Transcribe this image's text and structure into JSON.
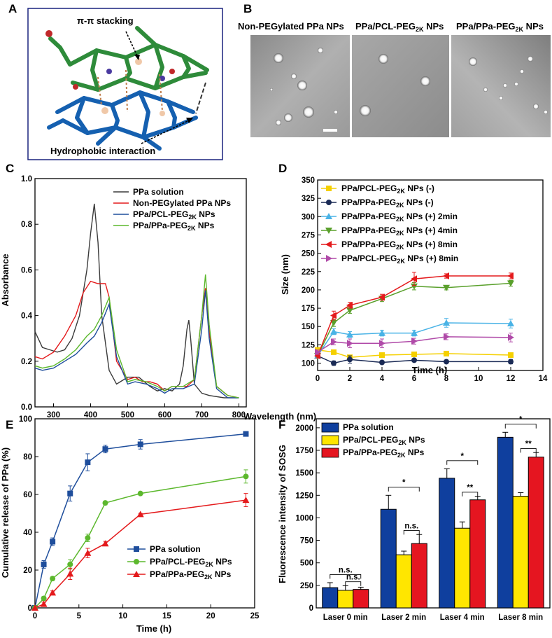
{
  "panels": [
    "A",
    "B",
    "C",
    "D",
    "E",
    "F"
  ],
  "panel_a": {
    "label_pi": "π-π stacking",
    "label_hydro": "Hydrophobic interaction"
  },
  "panel_b": {
    "titles": [
      "Non-PEGylated PPa NPs",
      "PPa/PCL-PEG",
      "PPa/PPa-PEG"
    ],
    "sub": "2K",
    "suffix": " NPs"
  },
  "colors": {
    "dark": "#3a3a3a",
    "red": "#e41a1c",
    "blue": "#1f4e9c",
    "green": "#5cb82d",
    "yellow": "#f5d000",
    "navy": "#1a2a55",
    "cyan": "#4ab3e6",
    "olive": "#5aa02c",
    "magenta": "#b04aa8",
    "navyBar": "#0f3f9e",
    "yellowBar": "#ffe600",
    "redBar": "#e51520"
  },
  "chart_data": [
    {
      "id": "C",
      "type": "line",
      "xlabel": "Wavelength (nm)",
      "ylabel": "Absorbance",
      "xlim": [
        250,
        820
      ],
      "ylim": [
        0,
        1.0
      ],
      "xticks": [
        300,
        400,
        500,
        600,
        700,
        800
      ],
      "yticks": [
        0.0,
        0.2,
        0.4,
        0.6,
        0.8,
        1.0
      ],
      "legend": [
        {
          "pre": "PPa solution",
          "sub": "",
          "post": ""
        },
        {
          "pre": "Non-PEGylated PPa NPs",
          "sub": "",
          "post": ""
        },
        {
          "pre": "PPa/PCL-PEG",
          "sub": "2K",
          "post": " NPs"
        },
        {
          "pre": "PPa/PPa-PEG",
          "sub": "2K",
          "post": " NPs"
        }
      ],
      "series": [
        {
          "name": "PPa solution",
          "color": "dark",
          "x": [
            250,
            270,
            290,
            310,
            330,
            350,
            370,
            390,
            400,
            410,
            420,
            430,
            450,
            470,
            500,
            530,
            560,
            580,
            600,
            620,
            640,
            650,
            660,
            665,
            670,
            680,
            700,
            720,
            760,
            800
          ],
          "y": [
            0.33,
            0.26,
            0.25,
            0.24,
            0.25,
            0.3,
            0.4,
            0.6,
            0.76,
            0.89,
            0.72,
            0.4,
            0.16,
            0.1,
            0.13,
            0.13,
            0.09,
            0.07,
            0.08,
            0.07,
            0.1,
            0.18,
            0.34,
            0.38,
            0.3,
            0.1,
            0.06,
            0.05,
            0.04,
            0.04
          ]
        },
        {
          "name": "Non-PEGylated PPa NPs",
          "color": "red",
          "x": [
            250,
            270,
            300,
            330,
            360,
            380,
            400,
            420,
            440,
            450,
            470,
            500,
            520,
            540,
            560,
            580,
            600,
            620,
            640,
            660,
            680,
            700,
            710,
            720,
            740,
            770,
            800
          ],
          "y": [
            0.22,
            0.21,
            0.24,
            0.31,
            0.4,
            0.5,
            0.55,
            0.54,
            0.54,
            0.48,
            0.2,
            0.12,
            0.13,
            0.11,
            0.11,
            0.1,
            0.07,
            0.09,
            0.09,
            0.09,
            0.12,
            0.4,
            0.52,
            0.33,
            0.09,
            0.05,
            0.04
          ]
        },
        {
          "name": "PPa/PCL-PEG2K NPs",
          "color": "blue",
          "x": [
            250,
            270,
            300,
            330,
            360,
            390,
            410,
            430,
            450,
            470,
            500,
            520,
            550,
            580,
            600,
            620,
            650,
            680,
            700,
            710,
            720,
            740,
            770,
            800
          ],
          "y": [
            0.17,
            0.16,
            0.17,
            0.2,
            0.23,
            0.28,
            0.31,
            0.37,
            0.45,
            0.22,
            0.1,
            0.11,
            0.1,
            0.08,
            0.06,
            0.08,
            0.08,
            0.1,
            0.34,
            0.51,
            0.3,
            0.08,
            0.04,
            0.04
          ]
        },
        {
          "name": "PPa/PPa-PEG2K NPs",
          "color": "green",
          "x": [
            250,
            270,
            300,
            330,
            360,
            390,
            410,
            430,
            440,
            450,
            470,
            500,
            520,
            550,
            580,
            600,
            620,
            650,
            680,
            700,
            710,
            720,
            740,
            770,
            800
          ],
          "y": [
            0.18,
            0.17,
            0.18,
            0.21,
            0.25,
            0.31,
            0.34,
            0.4,
            0.44,
            0.48,
            0.25,
            0.11,
            0.12,
            0.11,
            0.09,
            0.07,
            0.09,
            0.09,
            0.12,
            0.4,
            0.58,
            0.36,
            0.09,
            0.05,
            0.04
          ]
        }
      ]
    },
    {
      "id": "D",
      "type": "line",
      "xlabel": "Time (h)",
      "ylabel": "Size (nm)",
      "xlim": [
        0,
        14
      ],
      "ylim": [
        90,
        350
      ],
      "xticks": [
        0,
        2,
        4,
        6,
        8,
        10,
        12,
        14
      ],
      "yticks": [
        100,
        125,
        150,
        175,
        200,
        225,
        250,
        275,
        300,
        325,
        350
      ],
      "series": [
        {
          "name": "PPa/PCL-PEG2K NPs (-)",
          "pre": "PPa/PCL-PEG",
          "sub": "2K",
          "post": " NPs (-)",
          "color": "yellow",
          "marker": "square",
          "x": [
            0,
            1,
            2,
            4,
            6,
            8,
            12
          ],
          "y": [
            118,
            115,
            108,
            111,
            112,
            113,
            111
          ],
          "err": [
            3,
            3,
            3,
            2,
            2,
            3,
            3
          ]
        },
        {
          "name": "PPa/PPa-PEG2K NPs (-)",
          "pre": "PPa/PPa-PEG",
          "sub": "2K",
          "post": " NPs (-)",
          "color": "navy",
          "marker": "circle",
          "x": [
            0,
            1,
            2,
            4,
            6,
            8,
            12
          ],
          "y": [
            110,
            100,
            105,
            101,
            104,
            102,
            102
          ],
          "err": [
            3,
            3,
            5,
            2,
            2,
            2,
            3
          ]
        },
        {
          "name": "PPa/PPa-PEG2K NPs (+) 2min",
          "pre": "PPa/PPa-PEG",
          "sub": "2K",
          "post": " NPs (+) 2min",
          "color": "cyan",
          "marker": "tri-up",
          "x": [
            0,
            1,
            2,
            4,
            6,
            8,
            12
          ],
          "y": [
            110,
            143,
            139,
            141,
            141,
            155,
            154
          ],
          "err": [
            3,
            4,
            4,
            4,
            4,
            6,
            6
          ]
        },
        {
          "name": "PPa/PPa-PEG2K NPs (+) 4min",
          "pre": "PPa/PPa-PEG",
          "sub": "2K",
          "post": " NPs (+) 4min",
          "color": "olive",
          "marker": "tri-down",
          "x": [
            0,
            1,
            2,
            4,
            6,
            8,
            12
          ],
          "y": [
            110,
            155,
            172,
            188,
            205,
            203,
            209
          ],
          "err": [
            3,
            5,
            4,
            4,
            5,
            3,
            4
          ]
        },
        {
          "name": "PPa/PPa-PEG2K NPs (+) 8min",
          "pre": "PPa/PPa-PEG",
          "sub": "2K",
          "post": " NPs (+) 8min",
          "color": "red",
          "marker": "tri-left",
          "x": [
            0,
            1,
            2,
            4,
            6,
            8,
            12
          ],
          "y": [
            110,
            165,
            179,
            190,
            215,
            219,
            219
          ],
          "err": [
            3,
            6,
            4,
            4,
            9,
            3,
            4
          ]
        },
        {
          "name": "PPa/PCL-PEG2K NPs (+) 8min",
          "pre": "PPa/PCL-PEG",
          "sub": "2K",
          "post": " NPs (+) 8min",
          "color": "magenta",
          "marker": "tri-right",
          "x": [
            0,
            1,
            2,
            4,
            6,
            8,
            12
          ],
          "y": [
            115,
            129,
            127,
            127,
            130,
            136,
            135
          ],
          "err": [
            3,
            4,
            6,
            6,
            4,
            4,
            6
          ]
        }
      ]
    },
    {
      "id": "E",
      "type": "line",
      "xlabel": "Time (h)",
      "ylabel": "Cumulative release of PPa (%)",
      "xlim": [
        0,
        25
      ],
      "ylim": [
        0,
        100
      ],
      "xticks": [
        0,
        5,
        10,
        15,
        20,
        25
      ],
      "yticks": [
        0,
        20,
        40,
        60,
        80,
        100
      ],
      "series": [
        {
          "name": "PPa solution",
          "pre": "PPa solution",
          "sub": "",
          "post": "",
          "color": "blue",
          "marker": "square",
          "x": [
            0,
            1,
            2,
            4,
            6,
            8,
            12,
            24
          ],
          "y": [
            0,
            23,
            35,
            60.5,
            77,
            84,
            86.5,
            92
          ],
          "err": [
            0,
            2,
            2,
            4,
            4.5,
            2,
            2.5,
            1.2
          ]
        },
        {
          "name": "PPa/PCL-PEG2K NPs",
          "pre": "PPa/PCL-PEG",
          "sub": "2K",
          "post": " NPs",
          "color": "green",
          "marker": "circle",
          "x": [
            0,
            1,
            2,
            4,
            6,
            8,
            12,
            24
          ],
          "y": [
            0,
            5,
            15.5,
            23,
            37,
            55.5,
            60.5,
            69.5
          ],
          "err": [
            0,
            1,
            1,
            2.5,
            2,
            1,
            0.5,
            3.5
          ]
        },
        {
          "name": "PPa/PPa-PEG2K NPs",
          "pre": "PPa/PPa-PEG",
          "sub": "2K",
          "post": " NPs",
          "color": "red",
          "marker": "tri-up",
          "x": [
            0,
            1,
            2,
            4,
            6,
            8,
            12,
            24
          ],
          "y": [
            0,
            2,
            8,
            18,
            29,
            34,
            49.5,
            57
          ],
          "err": [
            0,
            1,
            1,
            3,
            2.5,
            1.2,
            0.5,
            3.5
          ]
        }
      ]
    },
    {
      "id": "F",
      "type": "bar",
      "ylabel": "Fluorescence intensity of SOSG",
      "ylim": [
        0,
        2100
      ],
      "yticks": [
        0,
        250,
        500,
        750,
        1000,
        1250,
        1500,
        1750,
        2000
      ],
      "categories": [
        "Laser 0 min",
        "Laser 2 min",
        "Laser 4 min",
        "Laser 8 min"
      ],
      "series": [
        {
          "name": "PPa solution",
          "pre": "PPa solution",
          "sub": "",
          "post": "",
          "color": "navyBar",
          "values": [
            225,
            1095,
            1440,
            1895
          ],
          "err": [
            55,
            155,
            105,
            55
          ]
        },
        {
          "name": "PPa/PCL-PEG2K NPs",
          "pre": "PPa/PCL-PEG",
          "sub": "2K",
          "post": " NPs",
          "color": "yellowBar",
          "values": [
            195,
            590,
            885,
            1240
          ],
          "err": [
            50,
            40,
            70,
            40
          ]
        },
        {
          "name": "PPa/PPa-PEG2K NPs",
          "pre": "PPa/PPa-PEG",
          "sub": "2K",
          "post": " NPs",
          "color": "redBar",
          "values": [
            205,
            715,
            1200,
            1675
          ],
          "err": [
            25,
            100,
            40,
            50
          ]
        }
      ],
      "significance": [
        {
          "group": 0,
          "pair": [
            0,
            2
          ],
          "label": "n.s."
        },
        {
          "group": 0,
          "pair": [
            1,
            2
          ],
          "label": "n.s."
        },
        {
          "group": 1,
          "pair": [
            0,
            2
          ],
          "label": "*"
        },
        {
          "group": 1,
          "pair": [
            1,
            2
          ],
          "label": "n.s."
        },
        {
          "group": 2,
          "pair": [
            0,
            2
          ],
          "label": "*"
        },
        {
          "group": 2,
          "pair": [
            1,
            2
          ],
          "label": "**"
        },
        {
          "group": 3,
          "pair": [
            0,
            2
          ],
          "label": "*"
        },
        {
          "group": 3,
          "pair": [
            1,
            2
          ],
          "label": "**"
        }
      ]
    }
  ]
}
